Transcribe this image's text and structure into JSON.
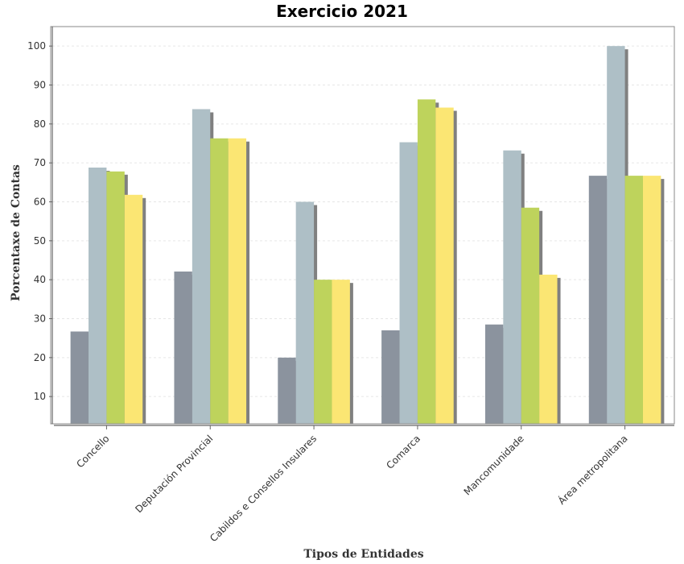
{
  "chart_data": {
    "type": "bar",
    "title": "Exercicio 2021",
    "xlabel": "Tipos de Entidades",
    "ylabel": "Porcentaxe de Contas",
    "categories": [
      "Concello",
      "Deputación Provincial",
      "Cabildos e Consellos Insulares",
      "Comarca",
      "Mancomunidade",
      "Área metropolitana"
    ],
    "series": [
      {
        "color": "#8b939e",
        "values": [
          26.7,
          42.1,
          20.0,
          27.0,
          28.5,
          66.7
        ]
      },
      {
        "color": "#aebfc6",
        "values": [
          68.8,
          83.8,
          60.0,
          75.3,
          73.2,
          100.0
        ]
      },
      {
        "color": "#bed35c",
        "values": [
          67.8,
          76.3,
          40.0,
          86.3,
          58.5,
          66.7
        ]
      },
      {
        "color": "#fbe673",
        "values": [
          61.8,
          76.3,
          40.0,
          84.2,
          41.3,
          66.7
        ]
      }
    ],
    "yticks": [
      10,
      20,
      30,
      40,
      50,
      60,
      70,
      80,
      90,
      100
    ],
    "ylim": [
      3,
      105
    ],
    "grid": true,
    "shadow_color": "#808080"
  }
}
